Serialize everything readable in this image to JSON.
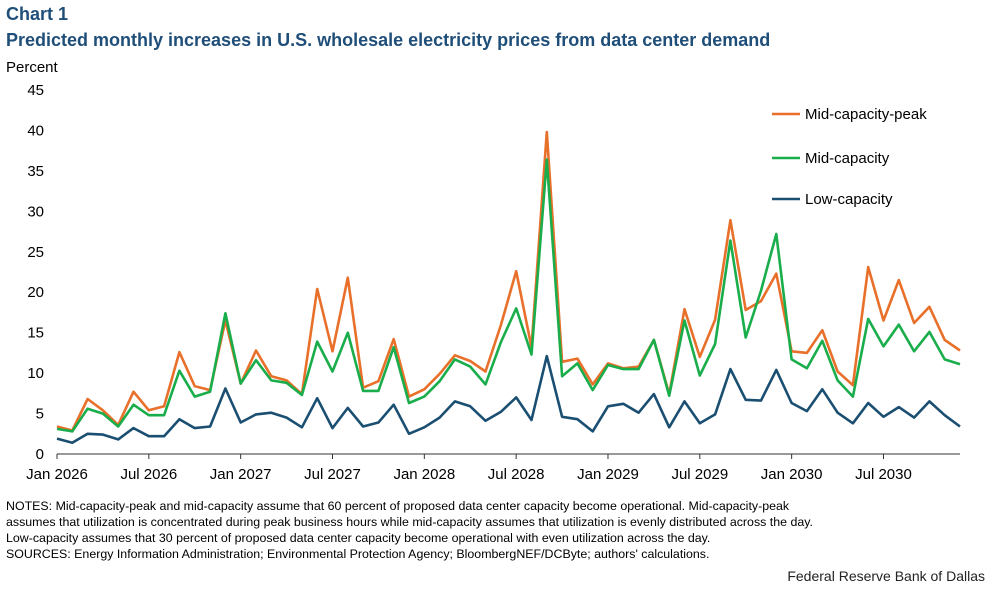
{
  "header": {
    "chart_label": "Chart 1",
    "title": "Predicted monthly increases in U.S. wholesale electricity prices from data center demand"
  },
  "chart_data": {
    "type": "line",
    "ylabel": "Percent",
    "ylim": [
      0,
      45
    ],
    "yticks": [
      0,
      5,
      10,
      15,
      20,
      25,
      30,
      35,
      40,
      45
    ],
    "x_start": "Jan 2026",
    "x_end": "Dec 2030",
    "x_tick_labels": [
      "Jan 2026",
      "Jul 2026",
      "Jan 2027",
      "Jul 2027",
      "Jan 2028",
      "Jul 2028",
      "Jan 2029",
      "Jul 2029",
      "Jan 2030",
      "Jul 2030"
    ],
    "x_tick_month_index": [
      0,
      6,
      12,
      18,
      24,
      30,
      36,
      42,
      48,
      54
    ],
    "legend_position": "top-right",
    "series": [
      {
        "name": "Mid-capacity-peak",
        "color": "#e8702a",
        "values": [
          3.4,
          2.9,
          6.8,
          5.4,
          3.6,
          7.7,
          5.4,
          5.9,
          12.6,
          8.4,
          7.9,
          16.5,
          8.7,
          12.8,
          9.6,
          9.1,
          7.4,
          20.4,
          12.7,
          21.8,
          8.2,
          9.0,
          14.2,
          7.1,
          8.0,
          9.9,
          12.2,
          11.5,
          10.2,
          15.9,
          22.6,
          13.2,
          39.8,
          11.4,
          11.8,
          8.6,
          11.2,
          10.6,
          10.8,
          14.1,
          7.4,
          17.9,
          12.0,
          16.6,
          28.9,
          17.8,
          18.9,
          22.3,
          12.7,
          12.5,
          15.3,
          10.2,
          8.5,
          23.1,
          16.5,
          21.5,
          16.2,
          18.2,
          14.1,
          12.8
        ]
      },
      {
        "name": "Mid-capacity",
        "color": "#1aad4b",
        "values": [
          3.1,
          2.8,
          5.6,
          5.0,
          3.4,
          6.1,
          4.8,
          4.8,
          10.3,
          7.1,
          7.7,
          17.4,
          8.7,
          11.6,
          9.1,
          8.8,
          7.3,
          13.9,
          10.2,
          15.0,
          7.8,
          7.8,
          13.2,
          6.3,
          7.1,
          9.0,
          11.7,
          10.8,
          8.6,
          13.8,
          18.0,
          12.3,
          36.4,
          9.6,
          11.2,
          7.9,
          11.0,
          10.5,
          10.5,
          14.1,
          7.2,
          16.5,
          9.7,
          13.6,
          26.4,
          14.4,
          20.2,
          27.2,
          11.7,
          10.6,
          14.0,
          9.1,
          7.1,
          16.7,
          13.3,
          16.0,
          12.7,
          15.1,
          11.7,
          11.1
        ]
      },
      {
        "name": "Low-capacity",
        "color": "#1b4f72",
        "values": [
          1.9,
          1.4,
          2.5,
          2.4,
          1.8,
          3.2,
          2.2,
          2.2,
          4.3,
          3.2,
          3.4,
          8.1,
          3.9,
          4.9,
          5.1,
          4.5,
          3.3,
          6.9,
          3.2,
          5.7,
          3.4,
          3.9,
          6.1,
          2.5,
          3.3,
          4.5,
          6.5,
          5.9,
          4.1,
          5.2,
          7.0,
          4.2,
          12.1,
          4.6,
          4.3,
          2.8,
          5.9,
          6.2,
          5.1,
          7.4,
          3.3,
          6.5,
          3.8,
          4.9,
          10.5,
          6.7,
          6.6,
          10.4,
          6.3,
          5.3,
          8.0,
          5.1,
          3.8,
          6.3,
          4.6,
          5.8,
          4.5,
          6.5,
          4.8,
          3.4
        ]
      }
    ]
  },
  "notes": {
    "line1": "NOTES: Mid-capacity-peak and mid-capacity assume that 60 percent of proposed data center capacity become operational. Mid-capacity-peak",
    "line2": "assumes that utilization is concentrated during peak business hours while mid-capacity assumes that utilization is evenly distributed across the day.",
    "line3": "Low-capacity assumes that 30 percent of proposed data center capacity become operational with even utilization across the day.",
    "line4": "SOURCES: Energy Information Administration; Environmental Protection Agency; BloombergNEF/DCByte; authors' calculations."
  },
  "footer": {
    "source": "Federal Reserve Bank of Dallas"
  }
}
